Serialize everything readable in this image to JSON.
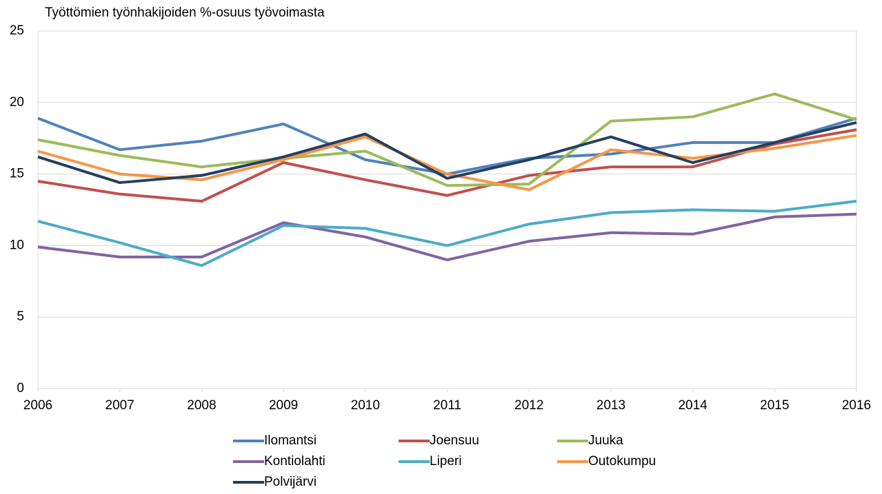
{
  "chart_data": {
    "type": "line",
    "title": "Työttömien työnhakijoiden %-osuus työvoimasta",
    "x": [
      2006,
      2007,
      2008,
      2009,
      2010,
      2011,
      2012,
      2013,
      2014,
      2015,
      2016
    ],
    "xlim": [
      2006,
      2016
    ],
    "xticks": [
      2006,
      2007,
      2008,
      2009,
      2010,
      2011,
      2012,
      2013,
      2014,
      2015,
      2016
    ],
    "ylim": [
      0,
      25
    ],
    "yticks": [
      0,
      5,
      10,
      15,
      20,
      25
    ],
    "grid": true,
    "legend": "bottom",
    "series": [
      {
        "name": "Ilomantsi",
        "color": "#4f81bd",
        "values": [
          18.9,
          16.7,
          17.3,
          18.5,
          16.0,
          15.0,
          16.1,
          16.4,
          17.2,
          17.2,
          18.9
        ]
      },
      {
        "name": "Joensuu",
        "color": "#c0504d",
        "values": [
          14.5,
          13.6,
          13.1,
          15.8,
          14.6,
          13.5,
          14.9,
          15.5,
          15.5,
          17.1,
          18.1
        ]
      },
      {
        "name": "Juuka",
        "color": "#9bbb59",
        "values": [
          17.4,
          16.3,
          15.5,
          16.1,
          16.6,
          14.2,
          14.3,
          18.7,
          19.0,
          20.6,
          18.8
        ]
      },
      {
        "name": "Kontiolahti",
        "color": "#8064a2",
        "values": [
          9.9,
          9.2,
          9.2,
          11.6,
          10.6,
          9.0,
          10.3,
          10.9,
          10.8,
          12.0,
          12.2
        ]
      },
      {
        "name": "Liperi",
        "color": "#4bacc6",
        "values": [
          11.7,
          10.2,
          8.6,
          11.4,
          11.2,
          10.0,
          11.5,
          12.3,
          12.5,
          12.4,
          13.1
        ]
      },
      {
        "name": "Outokumpu",
        "color": "#f79646",
        "values": [
          16.6,
          15.0,
          14.6,
          16.0,
          17.6,
          15.0,
          13.9,
          16.7,
          16.1,
          16.8,
          17.7
        ]
      },
      {
        "name": "Polvijärvi",
        "color": "#243f60",
        "values": [
          16.2,
          14.4,
          14.9,
          16.2,
          17.8,
          14.7,
          16.0,
          17.6,
          15.8,
          17.2,
          18.6
        ]
      }
    ]
  }
}
